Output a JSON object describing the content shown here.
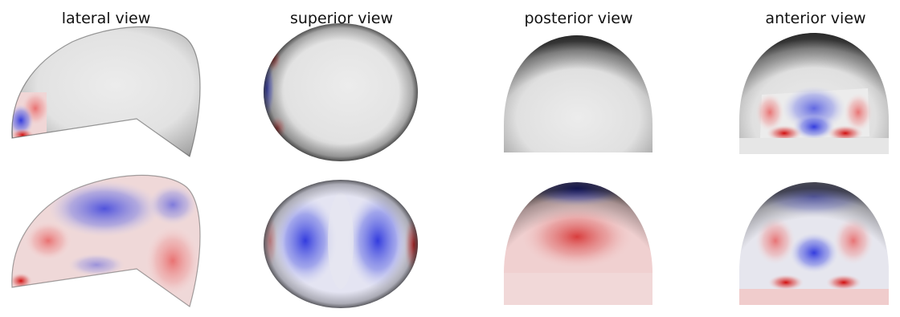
{
  "figure": {
    "view_titles": [
      "lateral view",
      "superior view",
      "posterior view",
      "anterior view"
    ],
    "rows": 2,
    "colormap": {
      "negative": "#2233dd",
      "neutral": "#e8e8e8",
      "positive": "#d11111"
    }
  }
}
